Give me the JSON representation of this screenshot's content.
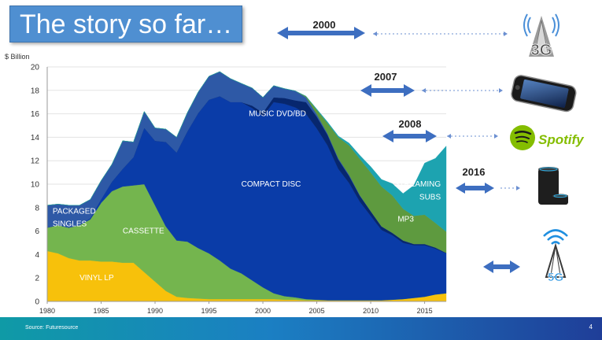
{
  "slide": {
    "title": "The story so far…",
    "source": "Source: Futuresource",
    "page_number": "4"
  },
  "timeline": [
    {
      "year": "2000",
      "icon": "3g-tower-icon"
    },
    {
      "year": "2007",
      "icon": "smartphone-icon"
    },
    {
      "year": "2008",
      "icon": "spotify-logo"
    },
    {
      "year": "2016",
      "icon": "smart-speaker-icon"
    },
    {
      "year": "",
      "icon": "5g-tower-icon"
    }
  ],
  "logo_text": {
    "spotify": "Spotify",
    "g3": "3G",
    "g5": "5G"
  },
  "colors": {
    "vinyl": "#f7c10b",
    "cassette": "#74b54e",
    "compact_disc": "#0a3ca8",
    "music_dvd_bd": "#07276e",
    "packaged_singles": "#2e59a6",
    "mp3": "#5e9a3f",
    "streaming": "#1da3b0",
    "arrow": "#3d6ec0",
    "title_bg": "#4f8fd1"
  },
  "chart_data": {
    "type": "area",
    "stacked": true,
    "ylabel": "$ Billion",
    "xlabel": "",
    "ylim": [
      0,
      20
    ],
    "yticks": [
      0,
      2,
      4,
      6,
      8,
      10,
      12,
      14,
      16,
      18,
      20
    ],
    "xlim": [
      1980,
      2017
    ],
    "xticks": [
      1980,
      1985,
      1990,
      1995,
      2000,
      2005,
      2010,
      2015
    ],
    "x": [
      1980,
      1981,
      1982,
      1983,
      1984,
      1985,
      1986,
      1987,
      1988,
      1989,
      1990,
      1991,
      1992,
      1993,
      1994,
      1995,
      1996,
      1997,
      1998,
      1999,
      2000,
      2001,
      2002,
      2003,
      2004,
      2005,
      2006,
      2007,
      2008,
      2009,
      2010,
      2011,
      2012,
      2013,
      2014,
      2015,
      2016,
      2017
    ],
    "series": [
      {
        "name": "VINYL LP",
        "color": "#f7c10b",
        "values": [
          4.3,
          4.1,
          3.7,
          3.5,
          3.5,
          3.4,
          3.4,
          3.3,
          3.3,
          2.5,
          1.7,
          0.9,
          0.4,
          0.3,
          0.25,
          0.2,
          0.2,
          0.2,
          0.2,
          0.2,
          0.2,
          0.2,
          0.15,
          0.15,
          0.1,
          0.1,
          0.1,
          0.1,
          0.1,
          0.1,
          0.1,
          0.1,
          0.15,
          0.2,
          0.3,
          0.4,
          0.6,
          0.7
        ]
      },
      {
        "name": "CASSETTE",
        "color": "#74b54e",
        "values": [
          2.0,
          2.4,
          2.6,
          3.0,
          3.5,
          5.0,
          6.0,
          6.5,
          6.6,
          7.5,
          6.5,
          5.5,
          4.8,
          4.8,
          4.3,
          3.9,
          3.3,
          2.6,
          2.2,
          1.6,
          1.0,
          0.5,
          0.3,
          0.2,
          0.1,
          0.05,
          0,
          0,
          0,
          0,
          0,
          0,
          0,
          0,
          0,
          0,
          0,
          0
        ]
      },
      {
        "name": "COMPACT DISC",
        "color": "#0a3ca8",
        "values": [
          0,
          0,
          0,
          0,
          0.1,
          0.3,
          0.8,
          1.5,
          2.4,
          4.8,
          5.5,
          7.2,
          7.5,
          9.4,
          11.5,
          13.1,
          14.0,
          14.2,
          14.6,
          14.7,
          14.6,
          16.3,
          16.4,
          16.2,
          15.8,
          14.6,
          13.2,
          11.2,
          10.0,
          8.4,
          7.2,
          6.0,
          5.5,
          4.8,
          4.5,
          4.4,
          3.9,
          3.4
        ]
      },
      {
        "name": "MUSIC DVD/BD",
        "color": "#07276e",
        "values": [
          0,
          0,
          0,
          0,
          0,
          0,
          0,
          0,
          0,
          0,
          0,
          0,
          0,
          0,
          0,
          0,
          0,
          0,
          0,
          0.2,
          0.3,
          0.4,
          0.5,
          0.6,
          1.0,
          1.0,
          0.9,
          0.8,
          0.6,
          0.5,
          0.4,
          0.3,
          0.2,
          0.2,
          0.1,
          0.1,
          0.1,
          0.05
        ]
      },
      {
        "name": "PACKAGED SINGLES",
        "color": "#2e59a6",
        "values": [
          1.9,
          1.8,
          1.9,
          1.7,
          1.6,
          1.6,
          1.5,
          2.4,
          1.3,
          1.4,
          1.1,
          1.1,
          1.3,
          1.6,
          1.8,
          2.0,
          2.1,
          2.0,
          1.6,
          1.5,
          1.3,
          1.0,
          0.8,
          0.8,
          0.4,
          0.2,
          0.1,
          0.1,
          0.1,
          0.05,
          0,
          0,
          0,
          0,
          0,
          0,
          0,
          0
        ]
      },
      {
        "name": "MP3",
        "color": "#5e9a3f",
        "values": [
          0,
          0,
          0,
          0,
          0,
          0,
          0,
          0,
          0,
          0,
          0,
          0,
          0,
          0,
          0,
          0,
          0,
          0,
          0,
          0,
          0,
          0,
          0,
          0,
          0.1,
          0.4,
          0.9,
          1.8,
          2.5,
          3.1,
          3.3,
          3.4,
          3.2,
          2.7,
          2.4,
          2.5,
          2.1,
          1.8
        ]
      },
      {
        "name": "STREAMING SUBS",
        "color": "#1da3b0",
        "values": [
          0,
          0,
          0,
          0,
          0,
          0,
          0,
          0,
          0,
          0,
          0,
          0,
          0,
          0,
          0,
          0,
          0,
          0,
          0,
          0,
          0,
          0,
          0,
          0,
          0,
          0.05,
          0.1,
          0.1,
          0.2,
          0.3,
          0.5,
          0.6,
          1.0,
          1.3,
          2.6,
          4.4,
          5.5,
          7.3
        ]
      }
    ],
    "labels": [
      {
        "text": "VINYL LP",
        "x": 1983,
        "y": 1.8,
        "color": "#ffffff"
      },
      {
        "text": "CASSETTE",
        "x": 1987,
        "y": 5.8,
        "color": "#ffffff"
      },
      {
        "text": "COMPACT DISC",
        "x": 1998,
        "y": 9.8,
        "color": "#ffffff"
      },
      {
        "text": "MUSIC DVD/BD",
        "x": 2004,
        "y": 15.8,
        "color": "#ffffff",
        "anchor": "end"
      },
      {
        "text": "PACKAGED",
        "x": 1980.5,
        "y": 7.5,
        "color": "#ffffff"
      },
      {
        "text": "SINGLES",
        "x": 1980.5,
        "y": 6.4,
        "color": "#ffffff"
      },
      {
        "text": "MP3",
        "x": 2012.5,
        "y": 6.8,
        "color": "#ffffff"
      },
      {
        "text": "STREAMING",
        "x": 2016.5,
        "y": 9.8,
        "color": "#ffffff",
        "anchor": "end"
      },
      {
        "text": "SUBS",
        "x": 2016.5,
        "y": 8.7,
        "color": "#ffffff",
        "anchor": "end"
      }
    ]
  }
}
